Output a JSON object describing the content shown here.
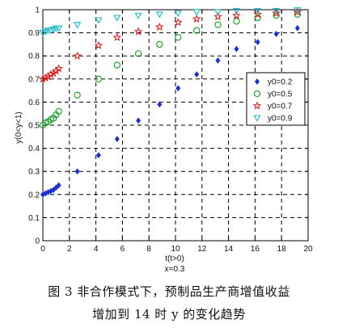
{
  "figure": {
    "caption_line1": "图 3   非合作模式下，预制品生产商增值收益",
    "caption_line2": "增加到 14 时 y 的变化趋势"
  },
  "chart_data": {
    "type": "scatter",
    "xlabel": "t(t>0)",
    "xlabel2": "x=0.3",
    "ylabel": "y(0<y<1)",
    "xlim": [
      0,
      20
    ],
    "ylim": [
      0,
      1
    ],
    "xticks": [
      0,
      2,
      4,
      6,
      8,
      10,
      12,
      14,
      16,
      18,
      20
    ],
    "yticks": [
      0,
      0.1,
      0.2,
      0.3,
      0.4,
      0.5,
      0.6,
      0.7,
      0.8,
      0.9,
      1
    ],
    "ytick_labels": [
      "0",
      "0.1",
      "0.2",
      "0.3",
      "0.4",
      "0.5",
      "0.6",
      "0.7",
      "0.8",
      "0.9",
      "1"
    ],
    "grid": true,
    "legend_position": "right",
    "series": [
      {
        "name": "y0=0.2",
        "marker": "diamond",
        "color": "#1a2fd6",
        "x": [
          0,
          0.2,
          0.4,
          0.6,
          0.8,
          1.0,
          1.2,
          2.6,
          4.2,
          5.6,
          7.2,
          8.8,
          10.2,
          11.6,
          13.2,
          14.6,
          16.2,
          17.6,
          19.2
        ],
        "y": [
          0.2,
          0.205,
          0.21,
          0.215,
          0.22,
          0.23,
          0.24,
          0.3,
          0.37,
          0.44,
          0.52,
          0.59,
          0.66,
          0.72,
          0.78,
          0.83,
          0.86,
          0.895,
          0.92
        ]
      },
      {
        "name": "y0=0.5",
        "marker": "circle",
        "color": "#0a9e1a",
        "x": [
          0,
          0.2,
          0.4,
          0.6,
          0.8,
          1.0,
          1.2,
          2.6,
          4.2,
          5.6,
          7.2,
          8.8,
          10.2,
          11.6,
          13.2,
          14.6,
          16.2,
          17.6,
          19.2
        ],
        "y": [
          0.5,
          0.51,
          0.515,
          0.525,
          0.53,
          0.545,
          0.56,
          0.63,
          0.7,
          0.76,
          0.81,
          0.85,
          0.88,
          0.91,
          0.935,
          0.95,
          0.965,
          0.975,
          0.98
        ]
      },
      {
        "name": "y0=0.7",
        "marker": "star",
        "color": "#e01515",
        "x": [
          0,
          0.2,
          0.4,
          0.6,
          0.8,
          1.0,
          1.2,
          2.6,
          4.2,
          5.6,
          7.2,
          8.8,
          10.2,
          11.6,
          13.2,
          14.6,
          16.2,
          17.6,
          19.2
        ],
        "y": [
          0.7,
          0.705,
          0.71,
          0.72,
          0.725,
          0.735,
          0.745,
          0.8,
          0.845,
          0.88,
          0.905,
          0.925,
          0.945,
          0.96,
          0.97,
          0.975,
          0.98,
          0.985,
          0.99
        ]
      },
      {
        "name": "y0=0.9",
        "marker": "triangle-down",
        "color": "#18b8cc",
        "x": [
          0,
          0.2,
          0.4,
          0.6,
          0.8,
          1.0,
          1.2,
          2.6,
          4.2,
          5.6,
          7.2,
          8.8,
          10.2,
          11.6,
          13.2,
          14.6,
          16.2,
          17.6,
          19.2
        ],
        "y": [
          0.9,
          0.905,
          0.91,
          0.91,
          0.915,
          0.92,
          0.92,
          0.935,
          0.955,
          0.965,
          0.975,
          0.98,
          0.985,
          0.99,
          0.99,
          0.995,
          0.995,
          0.995,
          0.998
        ]
      }
    ]
  }
}
